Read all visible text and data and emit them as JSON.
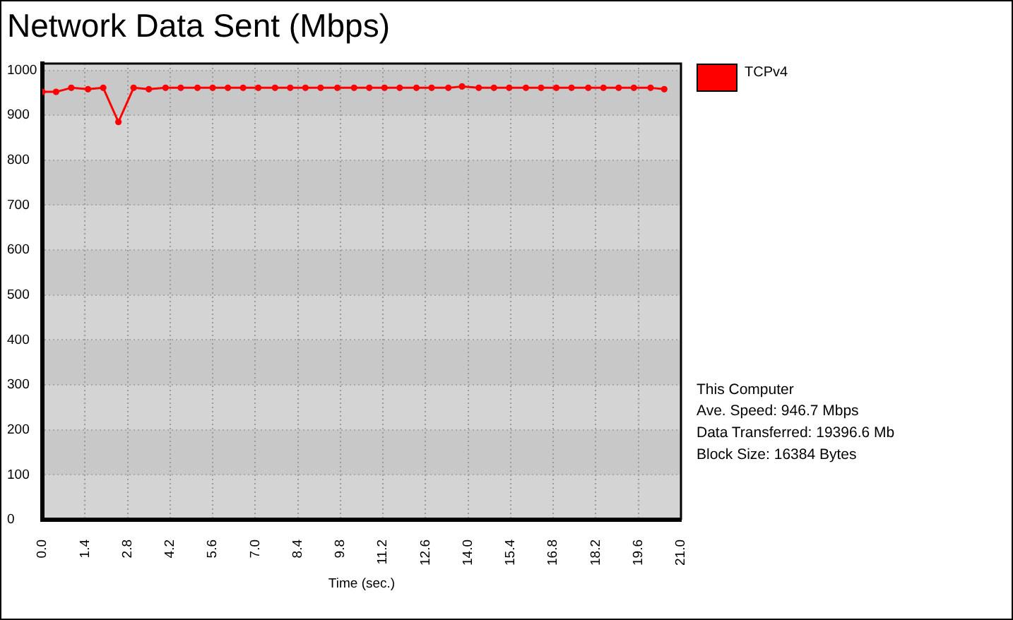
{
  "chart_data": {
    "type": "line",
    "title": "Network Data Sent (Mbps)",
    "xlabel": "Time (sec.)",
    "x": [
      0,
      0.45,
      0.95,
      1.5,
      2.0,
      2.5,
      3.0,
      3.5,
      4.05,
      4.55,
      5.1,
      5.6,
      6.1,
      6.6,
      7.1,
      7.65,
      8.15,
      8.65,
      9.15,
      9.7,
      10.25,
      10.75,
      11.25,
      11.75,
      12.3,
      12.8,
      13.35,
      13.8,
      14.35,
      14.85,
      15.35,
      15.9,
      16.4,
      16.9,
      17.4,
      17.95,
      18.45,
      18.95,
      19.45,
      20.0,
      20.45
    ],
    "series": [
      {
        "name": "TCPv4",
        "color": "#ff0000",
        "values": [
          952,
          952,
          961,
          958,
          961,
          885,
          961,
          958,
          961,
          961,
          961,
          961,
          961,
          961,
          961,
          961,
          961,
          961,
          961,
          961,
          961,
          961,
          961,
          961,
          961,
          961,
          961,
          964,
          961,
          961,
          961,
          961,
          961,
          961,
          961,
          961,
          961,
          961,
          961,
          961,
          958
        ]
      }
    ],
    "xlim": [
      0,
      21
    ],
    "xticks": [
      {
        "value": 0,
        "label": "0.0"
      },
      1.4,
      2.8,
      4.2,
      5.6,
      {
        "value": 7,
        "label": "7.0"
      },
      8.4,
      9.8,
      11.2,
      12.6,
      {
        "value": 14,
        "label": "14.0"
      },
      15.4,
      16.8,
      18.2,
      19.6,
      {
        "value": 21,
        "label": "21.0"
      }
    ],
    "ylim": [
      0,
      1015
    ],
    "yticks": [
      0,
      100,
      200,
      300,
      400,
      500,
      600,
      700,
      800,
      900,
      1000
    ],
    "grid": true,
    "legend": "top right",
    "marker": "circle",
    "annotations": [
      "This Computer",
      "Ave. Speed: 946.7 Mbps",
      "Data Transferred: 19396.6 Mb",
      "Block Size: 16384 Bytes"
    ]
  }
}
